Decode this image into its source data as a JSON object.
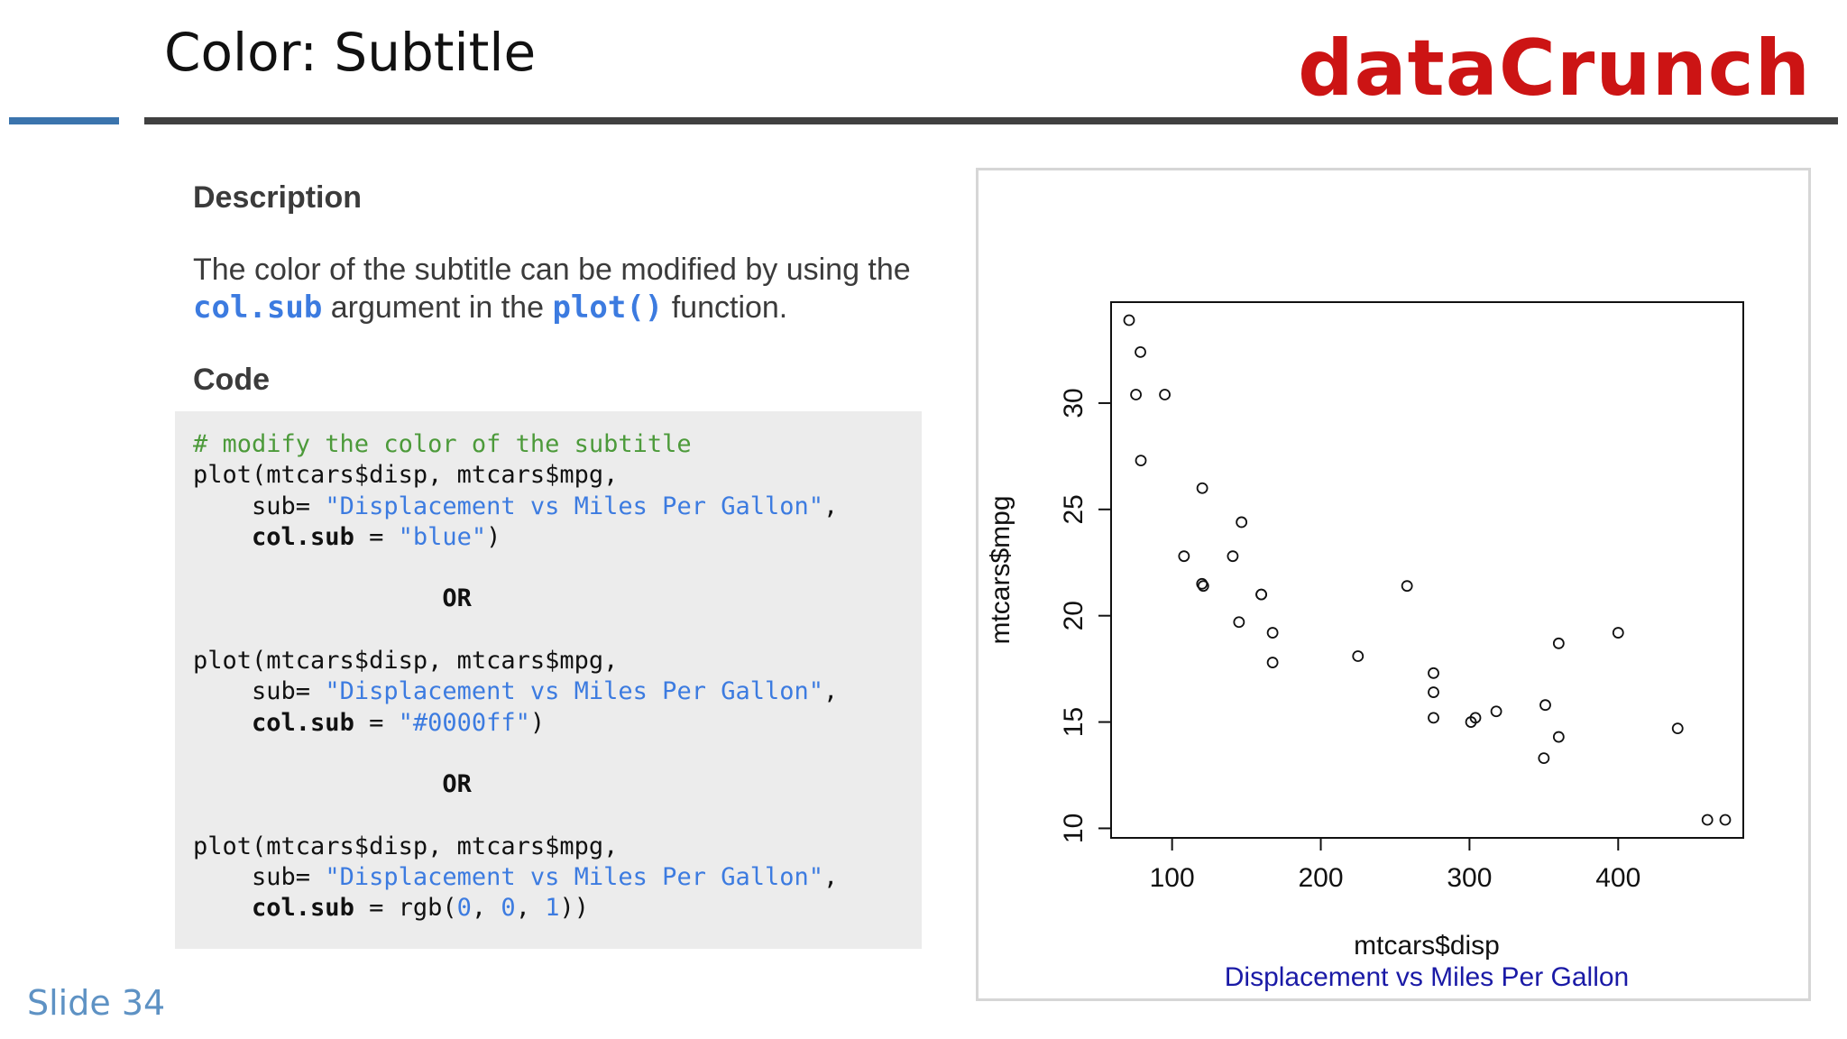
{
  "header": {
    "title": "Color: Subtitle",
    "brand": "dataCrunch"
  },
  "description": {
    "heading": "Description",
    "text_before": "The color of the subtitle can be modified by using the ",
    "keyword1": "col.sub",
    "text_middle": " argument in the ",
    "keyword2": "plot()",
    "text_after": " function."
  },
  "code": {
    "heading": "Code",
    "comment": "# modify the color of the subtitle",
    "plot_call": "plot(mtcars$disp, mtcars$mpg,",
    "sub_label": "sub= ",
    "sub_value": "\"Displacement vs Miles Per Gallon\"",
    "colsub_label": "col.sub",
    "eq": " = ",
    "value1": "\"blue\"",
    "value2": "\"#0000ff\"",
    "rgb_fn": "rgb(",
    "rgb_args": [
      "0",
      "0",
      "1"
    ],
    "or": "OR"
  },
  "footer": {
    "slide": "Slide 34"
  },
  "colors": {
    "brand_red": "#cc1414",
    "accent_blue": "#3c7be0",
    "comment_green": "#4c9a3a",
    "rule_blue": "#3b74ad",
    "subtitle_blue": "#1a1aa6"
  },
  "chart_data": {
    "type": "scatter",
    "xlabel": "mtcars$disp",
    "ylabel": "mtcars$mpg",
    "subtitle": "Displacement vs Miles Per Gallon",
    "xlim": [
      71.1,
      472
    ],
    "ylim": [
      10.4,
      33.9
    ],
    "xticks": [
      100,
      200,
      300,
      400
    ],
    "yticks": [
      10,
      15,
      20,
      25,
      30
    ],
    "grid": false,
    "points": [
      [
        160,
        21.0
      ],
      [
        160,
        21.0
      ],
      [
        108,
        22.8
      ],
      [
        258,
        21.4
      ],
      [
        360,
        18.7
      ],
      [
        225,
        18.1
      ],
      [
        360,
        14.3
      ],
      [
        146.7,
        24.4
      ],
      [
        140.8,
        22.8
      ],
      [
        167.6,
        19.2
      ],
      [
        167.6,
        17.8
      ],
      [
        275.8,
        16.4
      ],
      [
        275.8,
        17.3
      ],
      [
        275.8,
        15.2
      ],
      [
        472,
        10.4
      ],
      [
        460,
        10.4
      ],
      [
        440,
        14.7
      ],
      [
        78.7,
        32.4
      ],
      [
        75.7,
        30.4
      ],
      [
        71.1,
        33.9
      ],
      [
        120.1,
        21.5
      ],
      [
        318,
        15.5
      ],
      [
        304,
        15.2
      ],
      [
        350,
        13.3
      ],
      [
        400,
        19.2
      ],
      [
        79,
        27.3
      ],
      [
        120.3,
        26.0
      ],
      [
        95.1,
        30.4
      ],
      [
        351,
        15.8
      ],
      [
        145,
        19.7
      ],
      [
        301,
        15.0
      ],
      [
        121,
        21.4
      ]
    ]
  }
}
